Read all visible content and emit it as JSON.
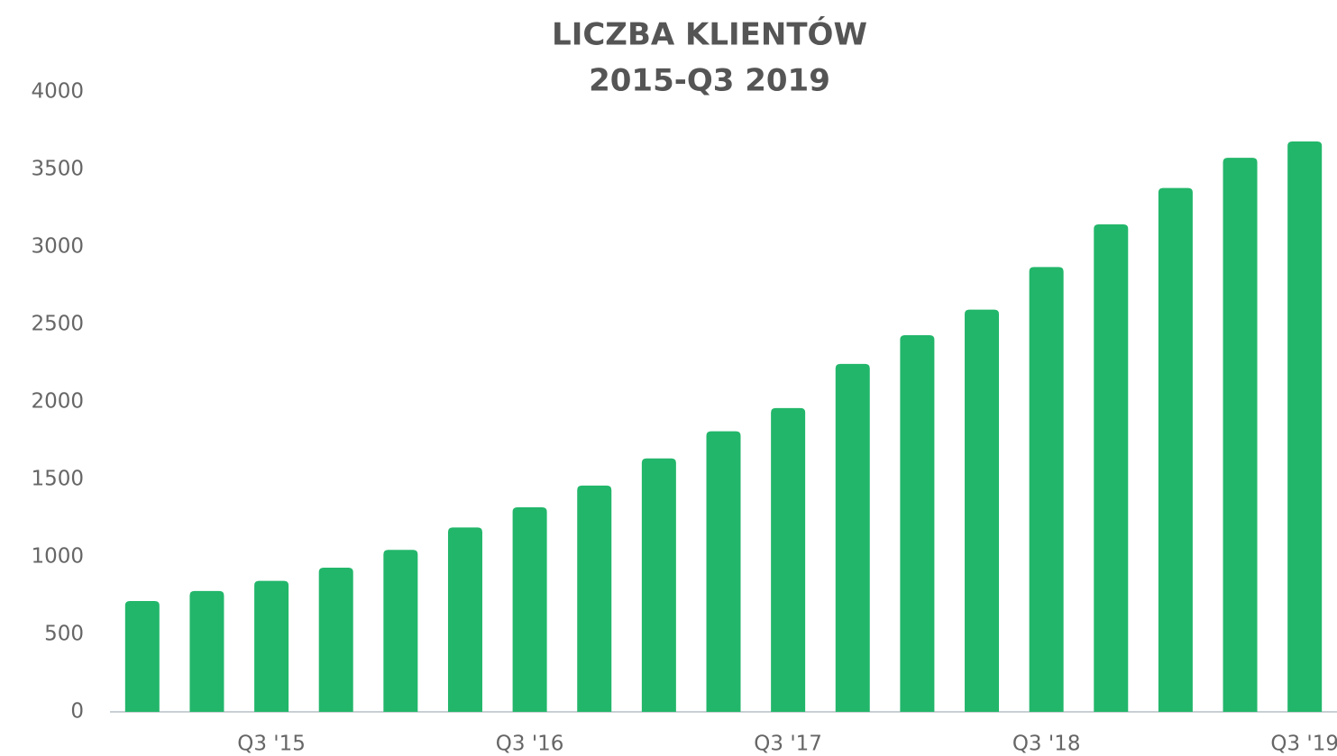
{
  "chart_data": {
    "type": "bar",
    "title": "LICZBA KLIENTÓW",
    "subtitle": "2015-Q3 2019",
    "categories": [
      null,
      null,
      "Q3 '15",
      null,
      null,
      null,
      "Q3 '16",
      null,
      null,
      null,
      "Q3 '17",
      null,
      null,
      null,
      "Q3 '18",
      null,
      null,
      null,
      "Q3 '19"
    ],
    "values": [
      715,
      780,
      845,
      930,
      1045,
      1190,
      1320,
      1460,
      1635,
      1810,
      1960,
      2245,
      2430,
      2595,
      2870,
      3145,
      3380,
      3575,
      3680
    ],
    "color": "#22b66a",
    "ylim": [
      0,
      4000
    ],
    "yticks": [
      0,
      500,
      1000,
      1500,
      2000,
      2500,
      3000,
      3500,
      4000
    ],
    "grid": false
  }
}
